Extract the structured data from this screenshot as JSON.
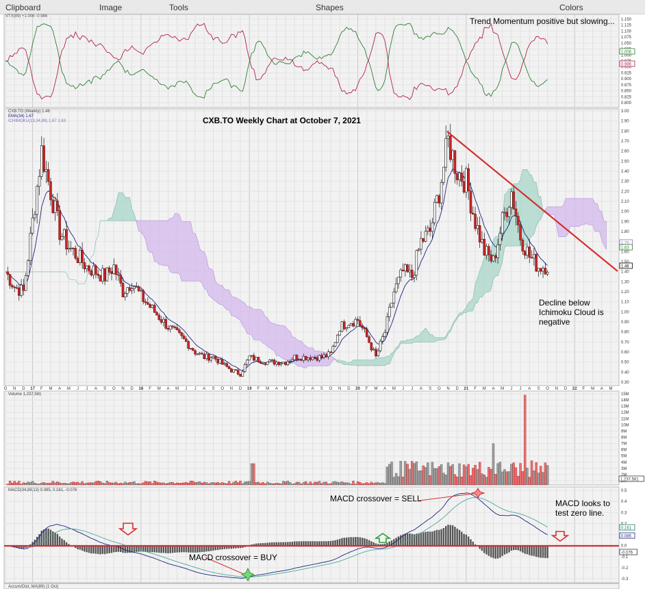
{
  "menu": {
    "items": [
      "Clipboard",
      "Image",
      "Tools",
      "Shapes",
      "Colors"
    ]
  },
  "panels": {
    "vtx": {
      "legend": "VTX(89) +1.006 -0.986",
      "annotation": "Trend Momentum positive but slowing...",
      "yticks": [
        "1.150",
        "1.125",
        "1.100",
        "1.075",
        "1.050",
        "1.025",
        "1.000",
        "0.975",
        "0.950",
        "0.925",
        "0.900",
        "0.875",
        "0.850",
        "0.825",
        "0.800"
      ],
      "badges": [
        {
          "text": "1.006",
          "color": "#2e7d32"
        },
        {
          "text": "0.986",
          "color": "#b0214a"
        }
      ]
    },
    "price": {
      "legend_lines": [
        "CXB.TO (Weekly) 1.46",
        "EMA(34) 1.67",
        "ICHIMOKU(13,34,89) 1.67 1.63"
      ],
      "title": "CXB.TO Weekly Chart at October 7, 2021",
      "annotation_lines": [
        "Decline below",
        "Ichimoku Cloud is",
        "negative"
      ],
      "yticks": [
        "3.00",
        "2.90",
        "2.80",
        "2.70",
        "2.60",
        "2.50",
        "2.40",
        "2.30",
        "2.20",
        "2.10",
        "2.00",
        "1.90",
        "1.80",
        "1.70",
        "1.60",
        "1.50",
        "1.40",
        "1.30",
        "1.20",
        "1.10",
        "1.00",
        "0.90",
        "0.80",
        "0.70",
        "0.60",
        "0.50",
        "0.40",
        "0.30"
      ],
      "badges": [
        {
          "text": "1.70",
          "color": "#8e6cc2"
        },
        {
          "text": "1.63",
          "color": "#2e7d32"
        },
        {
          "text": "1.46",
          "color": "#000000"
        }
      ]
    },
    "timeaxis": {
      "labels": [
        "O",
        "N",
        "D",
        "17",
        "F",
        "M",
        "A",
        "M",
        "J",
        "J",
        "A",
        "S",
        "O",
        "N",
        "D",
        "18",
        "F",
        "M",
        "A",
        "M",
        "J",
        "J",
        "A",
        "S",
        "O",
        "N",
        "D",
        "19",
        "F",
        "M",
        "A",
        "M",
        "J",
        "J",
        "A",
        "S",
        "O",
        "N",
        "D",
        "20",
        "F",
        "M",
        "A",
        "M",
        "J",
        "J",
        "A",
        "S",
        "O",
        "N",
        "D",
        "21",
        "F",
        "M",
        "A",
        "M",
        "J",
        "J",
        "A",
        "S",
        "O",
        "N",
        "D",
        "22",
        "F",
        "M",
        "A",
        "M"
      ]
    },
    "volume": {
      "legend": "Volume 1,237,581",
      "yticks": [
        "15M",
        "14M",
        "13M",
        "12M",
        "11M",
        "10M",
        "9M",
        "8M",
        "7M",
        "6M",
        "5M",
        "4M",
        "3M",
        "2M",
        "1M"
      ],
      "badge": "1,237,581"
    },
    "macd": {
      "legend": "MACD(34,89,13) 0.085, 0.161, -0.076",
      "sell_label": "MACD crossover = SELL",
      "buy_label": "MACD crossover = BUY",
      "annotation_lines": [
        "MACD looks to",
        "test zero line."
      ],
      "yticks": [
        "0.5",
        "0.4",
        "0.3",
        "0.2",
        "0.1",
        "0.0",
        "-0.1",
        "-0.2",
        "-0.3"
      ],
      "badges": [
        {
          "text": "0.161",
          "color": "#1a7a6a"
        },
        {
          "text": "0.085",
          "color": "#1a237e"
        },
        {
          "text": "-0.076",
          "color": "#333333"
        }
      ]
    },
    "accum": {
      "legend": "Accum/Dist, MA(89) (1 Oct)"
    }
  },
  "chart_data": {
    "type": "line",
    "title": "CXB.TO Weekly Chart at October 7, 2021",
    "ticker": "CXB.TO",
    "interval": "Weekly",
    "price_ylim": [
      0.3,
      3.0
    ],
    "price_series": [
      {
        "name": "CXB.TO (Weekly)",
        "last": 1.46
      },
      {
        "name": "EMA(34)",
        "last": 1.67
      },
      {
        "name": "ICHIMOKU(13,34,89)",
        "last": [
          1.67,
          1.63
        ]
      }
    ],
    "close_by_month": [
      [
        "2016-10",
        1.4
      ],
      [
        "2016-11",
        1.25
      ],
      [
        "2016-12",
        1.2
      ],
      [
        "2017-01",
        1.9
      ],
      [
        "2017-02",
        2.6
      ],
      [
        "2017-03",
        2.2
      ],
      [
        "2017-04",
        1.8
      ],
      [
        "2017-05",
        1.65
      ],
      [
        "2017-06",
        1.55
      ],
      [
        "2017-07",
        1.45
      ],
      [
        "2017-08",
        1.4
      ],
      [
        "2017-09",
        1.35
      ],
      [
        "2017-10",
        1.45
      ],
      [
        "2017-11",
        1.2
      ],
      [
        "2017-12",
        1.3
      ],
      [
        "2018-01",
        1.15
      ],
      [
        "2018-02",
        1.05
      ],
      [
        "2018-03",
        0.95
      ],
      [
        "2018-04",
        0.85
      ],
      [
        "2018-05",
        0.78
      ],
      [
        "2018-06",
        0.7
      ],
      [
        "2018-07",
        0.6
      ],
      [
        "2018-08",
        0.55
      ],
      [
        "2018-09",
        0.55
      ],
      [
        "2018-10",
        0.48
      ],
      [
        "2018-11",
        0.42
      ],
      [
        "2018-12",
        0.38
      ],
      [
        "2019-01",
        0.55
      ],
      [
        "2019-02",
        0.52
      ],
      [
        "2019-03",
        0.5
      ],
      [
        "2019-04",
        0.5
      ],
      [
        "2019-05",
        0.5
      ],
      [
        "2019-06",
        0.55
      ],
      [
        "2019-07",
        0.55
      ],
      [
        "2019-08",
        0.55
      ],
      [
        "2019-09",
        0.55
      ],
      [
        "2019-10",
        0.58
      ],
      [
        "2019-11",
        0.85
      ],
      [
        "2019-12",
        0.9
      ],
      [
        "2020-01",
        0.92
      ],
      [
        "2020-02",
        0.75
      ],
      [
        "2020-03",
        0.55
      ],
      [
        "2020-04",
        0.8
      ],
      [
        "2020-05",
        1.2
      ],
      [
        "2020-06",
        1.4
      ],
      [
        "2020-07",
        1.35
      ],
      [
        "2020-08",
        1.7
      ],
      [
        "2020-09",
        1.8
      ],
      [
        "2020-10",
        2.2
      ],
      [
        "2020-11",
        2.7
      ],
      [
        "2020-12",
        2.4
      ],
      [
        "2021-01",
        2.3
      ],
      [
        "2021-02",
        1.9
      ],
      [
        "2021-03",
        1.6
      ],
      [
        "2021-04",
        1.5
      ],
      [
        "2021-05",
        1.9
      ],
      [
        "2021-06",
        2.2
      ],
      [
        "2021-07",
        1.75
      ],
      [
        "2021-08",
        1.55
      ],
      [
        "2021-09",
        1.45
      ],
      [
        "2021-10",
        1.46
      ]
    ],
    "volume_ylim": [
      0,
      15000000
    ],
    "volume_last": 1237581,
    "macd_ylim": [
      -0.3,
      0.5
    ],
    "macd_last": {
      "macd": 0.085,
      "signal": 0.161,
      "histogram": -0.076
    },
    "vtx_ylim": [
      0.8,
      1.15
    ],
    "vtx_last": {
      "plus": 1.006,
      "minus": 0.986
    }
  }
}
